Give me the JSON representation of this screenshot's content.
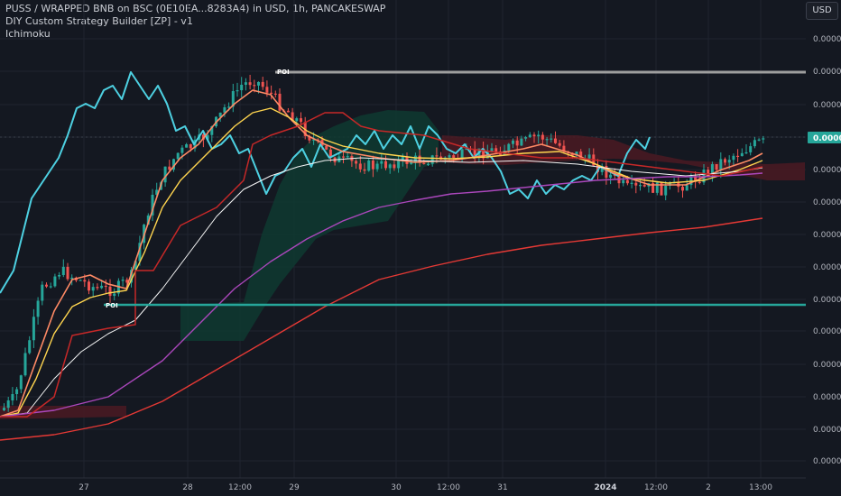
{
  "header": {
    "title": "PUSS / WRAPPED BNB on BSC (0E10EA...8283A4) in USD, 1h, PANCAKESWAP",
    "indicator_1": "DIY Custom Strategy Builder  [ZP] - v1",
    "indicator_2": "Ichimoku"
  },
  "currency_button": "USD",
  "colors": {
    "background": "#141821",
    "grid": "#1f2430",
    "up": "#26a69a",
    "down": "#ef5350",
    "rsi": "#4dd0e1",
    "ema_fast": "#ff8a65",
    "ema_mid": "#ffd54f",
    "ema_slow": "#f5f5f5",
    "ema_200": "#ab47bc",
    "ema_400": "#e53935",
    "kumo_bull": "#0e3a30",
    "kumo_bear": "#4a1a22",
    "poi_line_top": "#9e9e9e",
    "poi_line_bottom": "#26a69a"
  },
  "chart_data": {
    "type": "candlestick",
    "title": "PUSS / WRAPPED BNB on BSC (0E10EA...8283A4) in USD, 1h, PANCAKESWAP",
    "y_axis_labels": [
      "0.000000",
      "0.000000",
      "0.000000",
      "0.000000",
      "0.000000",
      "0.000000",
      "0.000000",
      "0.000000",
      "0.000000",
      "0.000000",
      "0.000000",
      "0.000000",
      "0.000000",
      "0.000000"
    ],
    "last_price_label": "0.000000",
    "x_axis_labels": [
      "27",
      "28",
      "12:00",
      "29",
      "30",
      "12:00",
      "31",
      "2024",
      "12:00",
      "2",
      "13:00"
    ],
    "annotations": [
      "POI",
      "POI"
    ],
    "grid": true
  }
}
